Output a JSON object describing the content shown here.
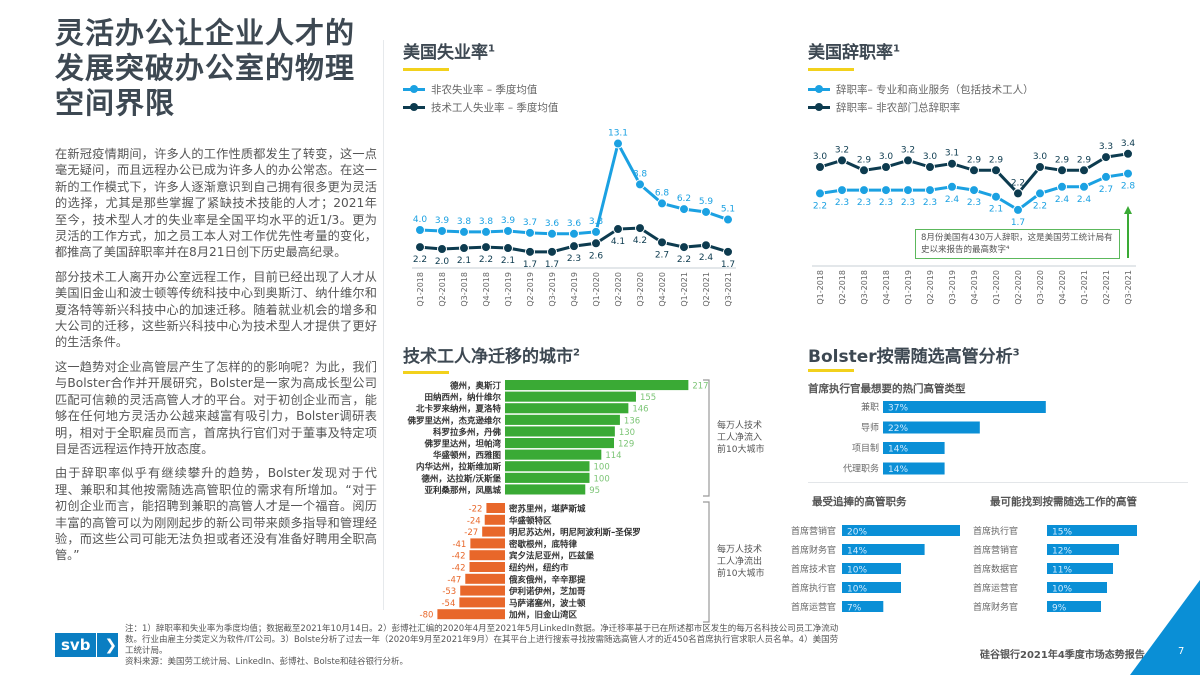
{
  "title": "灵活办公让企业人才的发展突破办公室的物理空间界限",
  "paragraphs": [
    "在新冠疫情期间，许多人的工作性质都发生了转变，这一点毫无疑问，而且远程办公已成为许多人的办公常态。在这一新的工作模式下，许多人逐渐意识到自己拥有很多更为灵活的选择，尤其是那些掌握了紧缺技术技能的人才；2021年至今，技术型人才的失业率是全国平均水平的近1/3。更为灵活的工作方式，加之员工本人对工作优先性考量的变化，都推高了美国辞职率并在8月21日创下历史最高纪录。",
    "部分技术工人离开办公室远程工作，目前已经出现了人才从美国旧金山和波士顿等传统科技中心到奥斯汀、纳什维尔和夏洛特等新兴科技中心的加速迁移。随着就业机会的增多和大公司的迁移，这些新兴科技中心为技术型人才提供了更好的生活条件。",
    "这一趋势对企业高管层产生了怎样的的影响呢？为此，我们与Bolster合作并开展研究，Bolster是一家为高成长型公司匹配可信赖的灵活高管人才的平台。对于初创企业而言，能够在任何地方灵活办公越来越富有吸引力，Bolster调研表明，相对于全职雇员而言，首席执行官们对于董事及特定项目是否远程运作持开放态度。",
    "由于辞职率似乎有继续攀升的趋势，Bolster发现对于代理、兼职和其他按需随选高管职位的需求有所增加。“对于初创企业而言，能招聘到兼职的高管人才是一个福音。阅历丰富的高管可以为刚刚起步的新公司带来颇多指导和管理经验，而这些公司可能无法负担或者还没有准备好聘用全职高管。”"
  ],
  "colors": {
    "light_blue": "#1ba1e2",
    "dark_navy": "#0d3b4f",
    "green": "#3aaa35",
    "orange": "#e8672a",
    "bar_blue": "#0a8fd6",
    "accent_yellow": "#f2d11c"
  },
  "chart_data": [
    {
      "type": "line",
      "title": "美国失业率",
      "title_sup": "1",
      "categories": [
        "Q1-2018",
        "Q2-2018",
        "Q3-2018",
        "Q4-2018",
        "Q1-2019",
        "Q2-2019",
        "Q3-2019",
        "Q4-2019",
        "Q1-2020",
        "Q2-2020",
        "Q3-2020",
        "Q4-2020",
        "Q1-2021",
        "Q2-2021",
        "Q3-2021"
      ],
      "series": [
        {
          "name": "非农失业率 – 季度均值",
          "color": "#1ba1e2",
          "values": [
            4.0,
            3.9,
            3.8,
            3.8,
            3.9,
            3.7,
            3.6,
            3.6,
            3.8,
            13.1,
            8.8,
            6.8,
            6.2,
            5.9,
            5.1
          ]
        },
        {
          "name": "技术工人失业率 – 季度均值",
          "color": "#0d3b4f",
          "values": [
            2.2,
            2.0,
            2.1,
            2.2,
            2.1,
            1.7,
            1.7,
            2.3,
            2.6,
            4.1,
            4.2,
            2.7,
            2.2,
            2.4,
            1.7
          ]
        }
      ]
    },
    {
      "type": "line",
      "title": "美国辞职率",
      "title_sup": "1",
      "categories": [
        "Q1-2018",
        "Q2-2018",
        "Q3-2018",
        "Q4-2018",
        "Q1-2019",
        "Q2-2019",
        "Q3-2019",
        "Q4-2019",
        "Q1-2020",
        "Q2-2020",
        "Q3-2020",
        "Q4-2020",
        "Q1-2021",
        "Q2-2021",
        "Q3-2021"
      ],
      "series": [
        {
          "name": "辞职率– 专业和商业服务（包括技术工人）",
          "color": "#1ba1e2",
          "values": [
            2.2,
            2.3,
            2.3,
            2.3,
            2.3,
            2.3,
            2.4,
            2.3,
            2.1,
            1.7,
            2.2,
            2.4,
            2.4,
            2.7,
            2.8
          ]
        },
        {
          "name": "辞职率– 非农部门总辞职率",
          "color": "#0d3b4f",
          "values": [
            3.0,
            3.2,
            2.9,
            3.0,
            3.2,
            3.0,
            3.1,
            2.9,
            2.9,
            2.2,
            3.0,
            2.9,
            2.9,
            3.3,
            3.4
          ]
        }
      ],
      "annotation": "8月份美国有430万人辞职，这是美国劳工统计局有史以来报告的最高数字⁴"
    },
    {
      "type": "bar",
      "orientation": "horizontal",
      "title": "技术工人净迁移的城市",
      "title_sup": "2",
      "inflow": {
        "label": "每万人技术工人净流入前10大城市",
        "categories": [
          "德州，奥斯汀",
          "田纳西州，纳什维尔",
          "北卡罗来纳州，夏洛特",
          "佛罗里达州，杰克逊维尔",
          "科罗拉多州，丹佛",
          "佛罗里达州，坦帕湾",
          "华盛顿州，西雅图",
          "内华达州，拉斯维加斯",
          "德州，达拉斯/沃斯堡",
          "亚利桑那州，凤凰城"
        ],
        "values": [
          217,
          155,
          146,
          136,
          130,
          129,
          114,
          100,
          100,
          95
        ]
      },
      "outflow": {
        "label": "每万人技术工人净流出前10大城市",
        "categories": [
          "密苏里州，堪萨斯城",
          "华盛顿特区",
          "明尼苏达州，明尼阿波利斯–圣保罗",
          "密歇根州，底特律",
          "宾夕法尼亚州，匹兹堡",
          "纽约州，纽约市",
          "俄亥俄州，辛辛那提",
          "伊利诺伊州，芝加哥",
          "马萨诸塞州，波士顿",
          "加州，旧金山湾区"
        ],
        "values": [
          -22,
          -24,
          -27,
          -41,
          -42,
          -42,
          -47,
          -53,
          -54,
          -80
        ]
      }
    },
    {
      "type": "bar",
      "orientation": "horizontal",
      "title": "Bolster按需随选高管分析",
      "title_sup": "3",
      "panels": [
        {
          "title": "首席执行官最想要的热门高管类型",
          "categories": [
            "兼职",
            "导师",
            "项目制",
            "代理职务"
          ],
          "values": [
            37,
            22,
            14,
            14
          ],
          "unit": "%"
        },
        {
          "title": "最受追捧的高管职务",
          "categories": [
            "首席营销官",
            "首席财务官",
            "首席技术官",
            "首席执行官",
            "首席运营官"
          ],
          "values": [
            20,
            14,
            10,
            10,
            7
          ],
          "unit": "%"
        },
        {
          "title": "最可能找到按需随选工作的高管",
          "categories": [
            "首席执行官",
            "首席营销官",
            "首席数据官",
            "首席运营官",
            "首席财务官"
          ],
          "values": [
            15,
            12,
            11,
            10,
            9
          ],
          "unit": "%"
        }
      ]
    }
  ],
  "footer": {
    "logo": "svb",
    "notes": "注：1）辞职率和失业率为季度均值；数据截至2021年10月14日。2）彭博社汇编的2020年4月至2021年5月LinkedIn数据。净迁移率基于已在所述都市区发生的每万名科技公司员工净流动数。行业由雇主分类定义为软件/IT公司。3）Bolste分析了过去一年（2020年9月至2021年9月）在其平台上进行搜索寻找按需随选高管人才的近450名首席执行官求职人员名单。4）美国劳工统计局。",
    "sources": "资料来源：美国劳工统计局、LinkedIn、彭博社、Bolste和硅谷银行分析。",
    "report": "硅谷银行2021年4季度市场态势报告",
    "page": "7"
  }
}
